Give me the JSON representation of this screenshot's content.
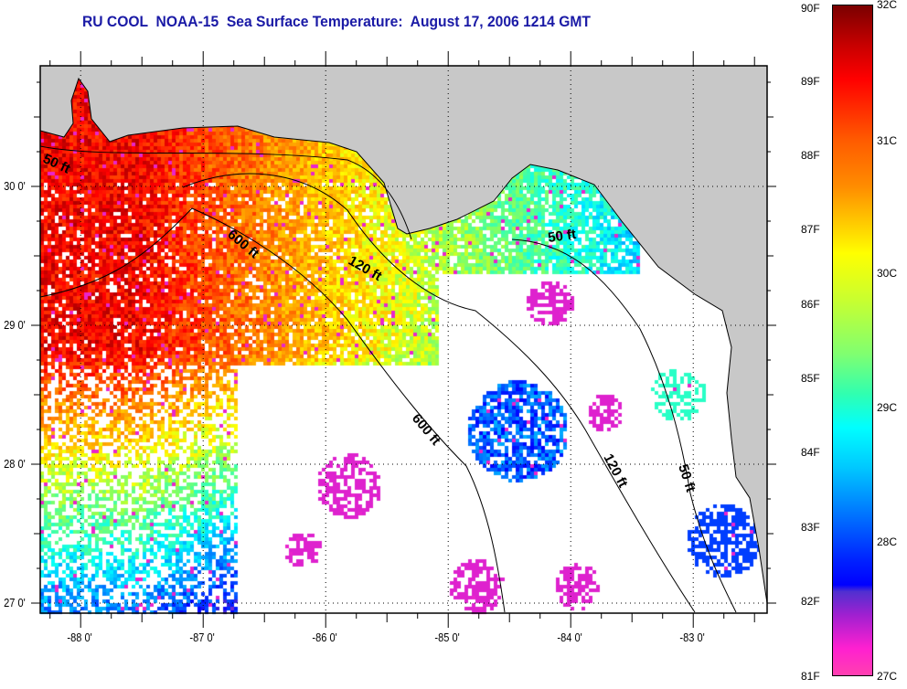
{
  "title": "RU COOL  NOAA-15  Sea Surface Temperature:  August 17, 2006 1214 GMT",
  "map": {
    "lon_range": [
      -88.33,
      -82.4
    ],
    "lat_range": [
      26.93,
      30.87
    ],
    "lon_ticks": [
      {
        "value": -88,
        "label": "-88 0'"
      },
      {
        "value": -87,
        "label": "-87 0'"
      },
      {
        "value": -86,
        "label": "-86 0'"
      },
      {
        "value": -85,
        "label": "-85 0'"
      },
      {
        "value": -84,
        "label": "-84 0'"
      },
      {
        "value": -83,
        "label": "-83 0'"
      }
    ],
    "lat_ticks": [
      {
        "value": 27,
        "label": "27 0'"
      },
      {
        "value": 28,
        "label": "28 0'"
      },
      {
        "value": 29,
        "label": "29 0'"
      },
      {
        "value": 30,
        "label": "30 0'"
      }
    ],
    "contour_labels": [
      "50 ft",
      "600 ft",
      "120 ft",
      "50 ft",
      "600 ft",
      "120 ft",
      "50 ft"
    ],
    "land_color": "#c8c8c8"
  },
  "colorbar": {
    "fahrenheit": [
      "90F",
      "89F",
      "88F",
      "87F",
      "86F",
      "85F",
      "84F",
      "83F",
      "82F",
      "81F"
    ],
    "celsius": [
      "32C",
      "31C",
      "30C",
      "29C",
      "28C",
      "27C"
    ]
  }
}
